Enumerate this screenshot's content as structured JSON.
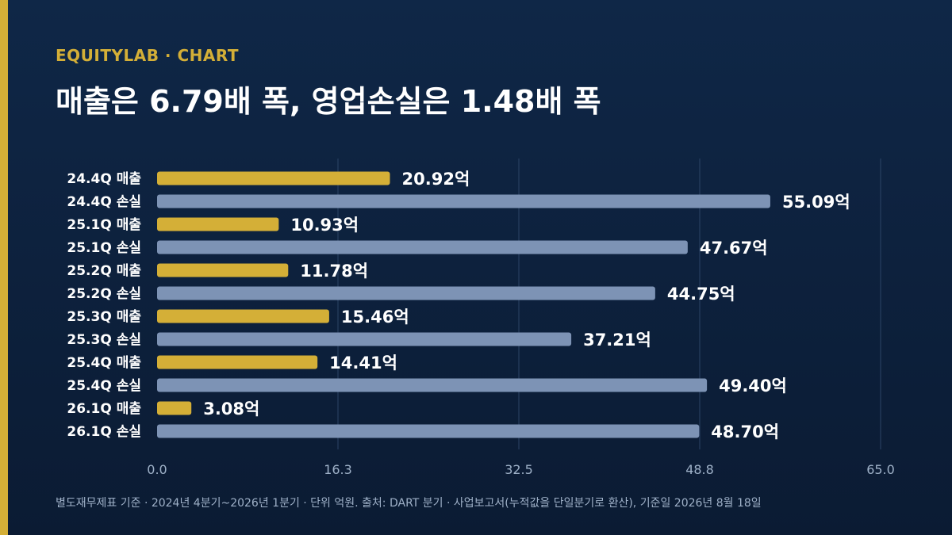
{
  "header": {
    "brand": "EQUITYLAB · CHART",
    "title": "매출은 6.79배 폭, 영업손실은 1.48배 폭"
  },
  "footnote": "별도재무제표 기준 · 2024년 4분기~2026년 1분기 · 단위 억원. 출처: DART 분기 · 사업보고서(누적값을 단일분기로 환산), 기준일 2026년 8월 18일",
  "colors": {
    "revenue": "#d4af37",
    "loss": "#7d93b5",
    "grid": "#2c4466",
    "label": "#ffffff",
    "tick": "#9fb1c8"
  },
  "chart_data": {
    "type": "bar",
    "orientation": "horizontal",
    "xlim": [
      0,
      65
    ],
    "xticks": [
      "0.0",
      "16.3",
      "32.5",
      "48.8",
      "65.0"
    ],
    "grid": true,
    "categories": [
      "24.4Q 매출",
      "24.4Q 손실",
      "25.1Q 매출",
      "25.1Q 손실",
      "25.2Q 매출",
      "25.2Q 손실",
      "25.3Q 매출",
      "25.3Q 손실",
      "25.4Q 매출",
      "25.4Q 손실",
      "26.1Q 매출",
      "26.1Q 손실"
    ],
    "values": [
      20.92,
      55.09,
      10.93,
      47.67,
      11.78,
      44.75,
      15.46,
      37.21,
      14.41,
      49.4,
      3.08,
      48.7
    ],
    "value_labels": [
      "20.92억",
      "55.09억",
      "10.93억",
      "47.67억",
      "11.78억",
      "44.75억",
      "15.46억",
      "37.21억",
      "14.41억",
      "49.40억",
      "3.08억",
      "48.70억"
    ],
    "kinds": [
      "revenue",
      "loss",
      "revenue",
      "loss",
      "revenue",
      "loss",
      "revenue",
      "loss",
      "revenue",
      "loss",
      "revenue",
      "loss"
    ]
  }
}
